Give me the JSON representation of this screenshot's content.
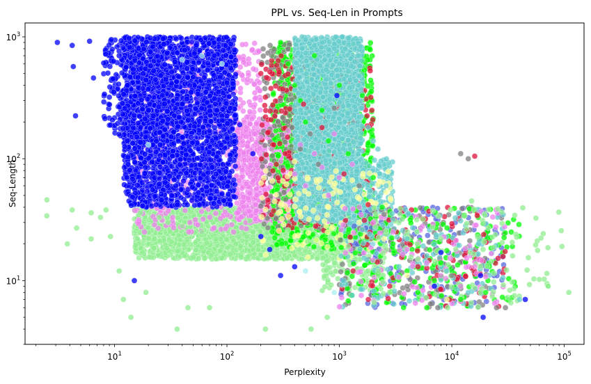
{
  "chart_data": {
    "type": "scatter",
    "title": "PPL vs. Seq-Len in Prompts",
    "xlabel": "Perplexity",
    "ylabel": "Seq-Length",
    "x_scale": "log",
    "y_scale": "log",
    "xlim": [
      1.6,
      150000
    ],
    "ylim": [
      3.0,
      1300
    ],
    "grid": false,
    "x_major_ticks": [
      {
        "value": 10,
        "base": "10",
        "exp": "1"
      },
      {
        "value": 100,
        "base": "10",
        "exp": "2"
      },
      {
        "value": 1000,
        "base": "10",
        "exp": "3"
      },
      {
        "value": 10000,
        "base": "10",
        "exp": "4"
      },
      {
        "value": 100000,
        "base": "10",
        "exp": "5"
      }
    ],
    "y_major_ticks": [
      {
        "value": 10,
        "base": "10",
        "exp": "1"
      },
      {
        "value": 100,
        "base": "10",
        "exp": "2"
      },
      {
        "value": 1000,
        "base": "10",
        "exp": "3"
      }
    ],
    "series": [
      {
        "color": "#90ee90",
        "points": [
          [
            2.5,
            46
          ],
          [
            2.5,
            34
          ],
          [
            3.8,
            20
          ],
          [
            4.2,
            38
          ],
          [
            4.6,
            27
          ],
          [
            6.2,
            36
          ],
          [
            6.2,
            22
          ],
          [
            7.5,
            33
          ],
          [
            8.4,
            38
          ],
          [
            9.2,
            23
          ],
          [
            11,
            12
          ],
          [
            12,
            7
          ],
          [
            14,
            5
          ],
          [
            17,
            36
          ],
          [
            19,
            8
          ],
          [
            25,
            33
          ],
          [
            36,
            4
          ],
          [
            45,
            6
          ],
          [
            70,
            6
          ],
          [
            220,
            4
          ],
          [
            560,
            4
          ],
          [
            780,
            5
          ],
          [
            9200,
            6
          ],
          [
            72000,
            9
          ],
          [
            110000,
            8
          ],
          [
            21000,
            27
          ],
          [
            15000,
            45
          ],
          [
            8000,
            22
          ],
          [
            5000,
            15
          ],
          [
            3000,
            9
          ],
          [
            1800,
            12
          ],
          [
            30,
            30
          ],
          [
            40,
            28
          ],
          [
            60,
            25
          ],
          [
            80,
            22
          ],
          [
            120,
            20
          ],
          [
            160,
            31
          ],
          [
            250,
            19
          ],
          [
            350,
            26
          ],
          [
            520,
            21
          ],
          [
            700,
            17
          ],
          [
            900,
            14
          ],
          [
            1200,
            19
          ]
        ]
      },
      {
        "color": "#0000ff",
        "points": [
          [
            3.1,
            900
          ],
          [
            4.2,
            850
          ],
          [
            4.3,
            570
          ],
          [
            4.5,
            225
          ],
          [
            6,
            920
          ],
          [
            6.5,
            460
          ],
          [
            8,
            610
          ],
          [
            9,
            320
          ],
          [
            11,
            700
          ],
          [
            13,
            400
          ],
          [
            15,
            10
          ],
          [
            18,
            500
          ],
          [
            20,
            250
          ],
          [
            22,
            130
          ],
          [
            25,
            62
          ],
          [
            30,
            80
          ],
          [
            35,
            60
          ],
          [
            40,
            280
          ],
          [
            48,
            150
          ],
          [
            55,
            340
          ],
          [
            70,
            170
          ],
          [
            80,
            75
          ],
          [
            100,
            420
          ],
          [
            130,
            190
          ],
          [
            170,
            110
          ],
          [
            200,
            23
          ],
          [
            240,
            18
          ],
          [
            300,
            11
          ],
          [
            400,
            13
          ],
          [
            950,
            330
          ],
          [
            19000,
            5
          ],
          [
            18000,
            11
          ],
          [
            8000,
            17
          ],
          [
            7000,
            9
          ],
          [
            45000,
            7
          ]
        ]
      },
      {
        "color": "#ee82ee",
        "points": [
          [
            150,
            220
          ],
          [
            200,
            150
          ],
          [
            250,
            120
          ],
          [
            300,
            95
          ],
          [
            350,
            170
          ],
          [
            400,
            75
          ],
          [
            450,
            130
          ],
          [
            500,
            60
          ],
          [
            600,
            110
          ],
          [
            700,
            85
          ],
          [
            800,
            50
          ],
          [
            900,
            160
          ],
          [
            1000,
            70
          ],
          [
            1300,
            90
          ],
          [
            1500,
            40
          ],
          [
            2000,
            30
          ],
          [
            3000,
            25
          ],
          [
            4000,
            18
          ],
          [
            6000,
            14
          ],
          [
            8000,
            11
          ],
          [
            12000,
            9
          ],
          [
            16000,
            13
          ]
        ]
      },
      {
        "color": "#00ff00",
        "points": [
          [
            300,
            900
          ],
          [
            350,
            600
          ],
          [
            400,
            400
          ],
          [
            450,
            300
          ],
          [
            500,
            200
          ],
          [
            600,
            700
          ],
          [
            700,
            250
          ],
          [
            800,
            140
          ],
          [
            1000,
            400
          ],
          [
            1200,
            110
          ],
          [
            1600,
            330
          ],
          [
            2000,
            70
          ],
          [
            2400,
            40
          ],
          [
            3000,
            20
          ],
          [
            4000,
            12
          ],
          [
            5000,
            8
          ],
          [
            6000,
            6
          ],
          [
            7000,
            10
          ],
          [
            8000,
            14
          ],
          [
            12000,
            7
          ],
          [
            20000,
            8
          ]
        ]
      },
      {
        "color": "#66cccc",
        "points": [
          [
            500,
            950
          ],
          [
            600,
            850
          ],
          [
            700,
            900
          ],
          [
            800,
            700
          ],
          [
            900,
            800
          ],
          [
            1000,
            600
          ],
          [
            1100,
            450
          ],
          [
            1200,
            520
          ],
          [
            1300,
            300
          ],
          [
            1500,
            220
          ],
          [
            1800,
            180
          ],
          [
            2000,
            140
          ],
          [
            2200,
            120
          ],
          [
            2600,
            60
          ],
          [
            3000,
            32
          ],
          [
            4000,
            22
          ],
          [
            6000,
            16
          ],
          [
            9000,
            12
          ],
          [
            14000,
            8
          ],
          [
            40000,
            7
          ]
        ]
      },
      {
        "color": "#808080",
        "points": [
          [
            250,
            700
          ],
          [
            300,
            300
          ],
          [
            380,
            180
          ],
          [
            450,
            120
          ],
          [
            550,
            160
          ],
          [
            650,
            90
          ],
          [
            900,
            260
          ],
          [
            1500,
            60
          ],
          [
            2500,
            35
          ],
          [
            4000,
            9
          ],
          [
            7500,
            6
          ],
          [
            10000,
            11
          ],
          [
            25000,
            6
          ],
          [
            30000,
            6
          ],
          [
            12000,
            110
          ],
          [
            14000,
            100
          ]
        ]
      },
      {
        "color": "#dc143c",
        "points": [
          [
            200,
            500
          ],
          [
            260,
            130
          ],
          [
            330,
            110
          ],
          [
            480,
            280
          ],
          [
            700,
            180
          ],
          [
            1100,
            75
          ],
          [
            1800,
            42
          ],
          [
            2800,
            9
          ],
          [
            5000,
            13
          ],
          [
            9500,
            7
          ],
          [
            16000,
            105
          ]
        ]
      },
      {
        "color": "#ffff99",
        "points": [
          [
            400,
            95
          ],
          [
            520,
            70
          ],
          [
            800,
            40
          ],
          [
            1500,
            30
          ],
          [
            2500,
            22
          ],
          [
            4000,
            11
          ],
          [
            9000,
            7
          ]
        ]
      },
      {
        "color": "#aaeeee",
        "points": [
          [
            40,
            650
          ],
          [
            60,
            700
          ],
          [
            90,
            600
          ],
          [
            20,
            130
          ],
          [
            500,
            12
          ],
          [
            900,
            8
          ],
          [
            2000,
            20
          ]
        ]
      }
    ],
    "dense_regions": [
      {
        "color": "#90ee90",
        "x": [
          15,
          1500
        ],
        "y": [
          15,
          40
        ],
        "n": 2400
      },
      {
        "color": "#90ee90",
        "x": [
          700,
          2500
        ],
        "y": [
          8,
          30
        ],
        "n": 200
      },
      {
        "color": "#ee82ee",
        "x": [
          15,
          200
        ],
        "y": [
          25,
          900
        ],
        "n": 700
      },
      {
        "color": "#ee82ee",
        "x": [
          120,
          900
        ],
        "y": [
          30,
          200
        ],
        "n": 900
      },
      {
        "color": "#00ff00",
        "x": [
          250,
          2000
        ],
        "y": [
          18,
          900
        ],
        "n": 1200
      },
      {
        "color": "#808080",
        "x": [
          200,
          1500
        ],
        "y": [
          25,
          900
        ],
        "n": 400
      },
      {
        "color": "#dc143c",
        "x": [
          200,
          2000
        ],
        "y": [
          25,
          700
        ],
        "n": 250
      },
      {
        "color": "#66cccc",
        "x": [
          400,
          1600
        ],
        "y": [
          30,
          1000
        ],
        "n": 2200
      },
      {
        "color": "#66cccc",
        "x": [
          1000,
          3000
        ],
        "y": [
          20,
          100
        ],
        "n": 300
      },
      {
        "color": "#ffff99",
        "x": [
          200,
          3000
        ],
        "y": [
          15,
          80
        ],
        "n": 120
      },
      {
        "color": "#0000ff",
        "x": [
          12,
          120
        ],
        "y": [
          40,
          1000
        ],
        "n": 2600
      },
      {
        "color": "#0000ff",
        "x": [
          8,
          30
        ],
        "y": [
          150,
          1000
        ],
        "n": 300
      },
      {
        "color": "#5566dd",
        "x": [
          1000,
          30000
        ],
        "y": [
          6,
          40
        ],
        "n": 150
      },
      {
        "color": "#808080",
        "x": [
          1000,
          30000
        ],
        "y": [
          6,
          40
        ],
        "n": 150
      },
      {
        "color": "#00ff00",
        "x": [
          1000,
          40000
        ],
        "y": [
          6,
          40
        ],
        "n": 180
      },
      {
        "color": "#dc143c",
        "x": [
          1000,
          30000
        ],
        "y": [
          6,
          40
        ],
        "n": 90
      },
      {
        "color": "#66cccc",
        "x": [
          1000,
          30000
        ],
        "y": [
          6,
          40
        ],
        "n": 110
      },
      {
        "color": "#ee82ee",
        "x": [
          1000,
          30000
        ],
        "y": [
          6,
          40
        ],
        "n": 80
      },
      {
        "color": "#90ee90",
        "x": [
          2000,
          100000
        ],
        "y": [
          6,
          40
        ],
        "n": 120
      }
    ]
  }
}
